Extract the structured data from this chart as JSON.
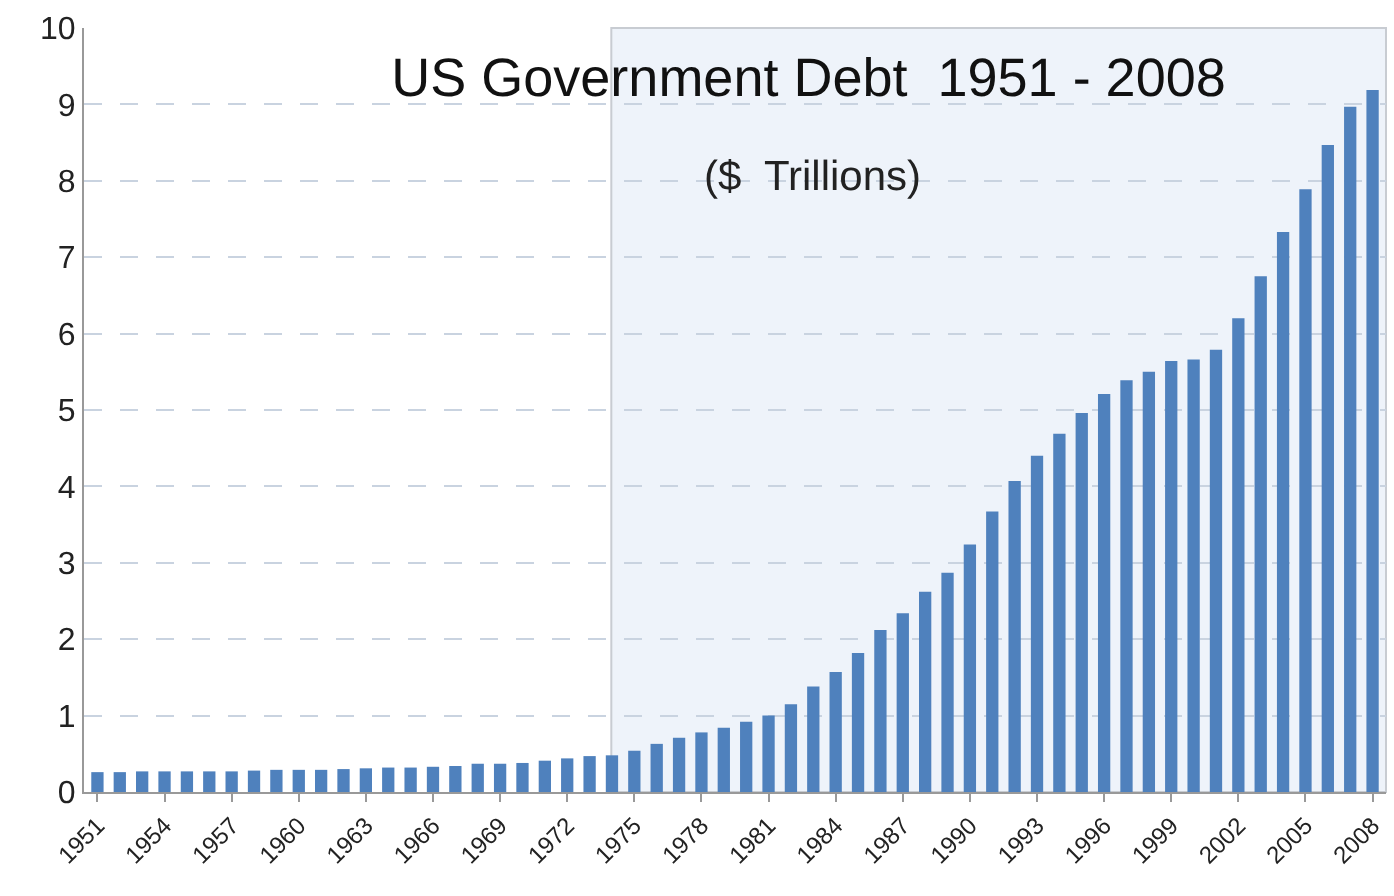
{
  "chart_data": {
    "type": "bar",
    "title": "US Government Debt  1951 - 2008",
    "subtitle": "($  Trillions)",
    "categories": [
      "1951",
      null,
      null,
      "1954",
      null,
      null,
      "1957",
      null,
      null,
      "1960",
      null,
      null,
      "1963",
      null,
      null,
      "1966",
      null,
      null,
      "1969",
      null,
      null,
      "1972",
      null,
      null,
      "1975",
      null,
      null,
      "1978",
      null,
      null,
      "1981",
      null,
      null,
      "1984",
      null,
      null,
      "1987",
      null,
      null,
      "1990",
      null,
      null,
      "1993",
      null,
      null,
      "1996",
      null,
      null,
      "1999",
      null,
      null,
      "2002",
      null,
      null,
      "2005",
      null,
      null,
      "2008"
    ],
    "values": [
      0.26,
      0.26,
      0.27,
      0.27,
      0.27,
      0.27,
      0.27,
      0.28,
      0.29,
      0.29,
      0.29,
      0.3,
      0.31,
      0.32,
      0.32,
      0.33,
      0.34,
      0.37,
      0.37,
      0.38,
      0.41,
      0.44,
      0.47,
      0.48,
      0.54,
      0.63,
      0.71,
      0.78,
      0.84,
      0.92,
      1.0,
      1.15,
      1.38,
      1.57,
      1.82,
      2.12,
      2.34,
      2.62,
      2.87,
      3.24,
      3.67,
      4.07,
      4.4,
      4.69,
      4.96,
      5.21,
      5.39,
      5.5,
      5.64,
      5.66,
      5.79,
      6.2,
      6.75,
      7.33,
      7.89,
      8.47,
      8.97,
      9.19
    ],
    "color": "#4f81bd",
    "ylim": [
      0,
      10
    ],
    "yticks": [
      0,
      1,
      2,
      3,
      4,
      5,
      6,
      7,
      8,
      9,
      10
    ],
    "grid": "y"
  }
}
